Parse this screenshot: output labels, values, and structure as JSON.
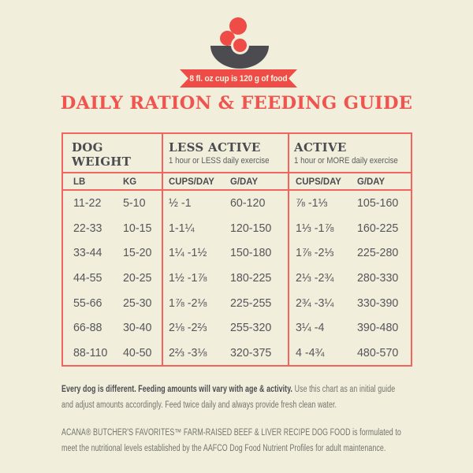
{
  "theme": {
    "background": "#f1eedc",
    "accent_red": "#ef4c47",
    "title_red": "#ef554e",
    "table_border_red": "#f2655e",
    "dark_gray": "#4b4b50",
    "value_gray": "#56565a",
    "note_gray": "#73736c",
    "ribbon_text_cream": "#f6f3e1"
  },
  "icons": {
    "bowl": "dog-food-bowl-icon",
    "kibble": "kibble-dot-icon"
  },
  "banner": {
    "text": "8 fl. oz cup is 120 g of food"
  },
  "title": "DAILY RATION & FEEDING GUIDE",
  "table": {
    "weight": {
      "title_line1": "DOG",
      "title_line2": "WEIGHT",
      "col1": "LB",
      "col2": "KG"
    },
    "less_active": {
      "title": "LESS ACTIVE",
      "subtitle": "1 hour or LESS daily exercise",
      "col1": "CUPS/DAY",
      "col2": "G/DAY"
    },
    "active": {
      "title": "ACTIVE",
      "subtitle": "1 hour or MORE daily exercise",
      "col1": "CUPS/DAY",
      "col2": "G/DAY"
    },
    "rows": [
      {
        "lb": "11-22",
        "kg": "5-10",
        "la_cups": "½ -1",
        "la_g": "60-120",
        "a_cups": "⅞ -1⅓",
        "a_g": "105-160"
      },
      {
        "lb": "22-33",
        "kg": "10-15",
        "la_cups": "1-1¼",
        "la_g": "120-150",
        "a_cups": "1⅓ -1⅞",
        "a_g": "160-225"
      },
      {
        "lb": "33-44",
        "kg": "15-20",
        "la_cups": "1¼ -1½",
        "la_g": "150-180",
        "a_cups": "1⅞ -2⅓",
        "a_g": "225-280"
      },
      {
        "lb": "44-55",
        "kg": "20-25",
        "la_cups": "1½ -1⅞",
        "la_g": "180-225",
        "a_cups": "2⅓ -2¾",
        "a_g": "280-330"
      },
      {
        "lb": "55-66",
        "kg": "25-30",
        "la_cups": "1⅞ -2⅛",
        "la_g": "225-255",
        "a_cups": "2¾ -3¼",
        "a_g": "330-390"
      },
      {
        "lb": "66-88",
        "kg": "30-40",
        "la_cups": "2⅛ -2⅔",
        "la_g": "255-320",
        "a_cups": "3¼ -4",
        "a_g": "390-480"
      },
      {
        "lb": "88-110",
        "kg": "40-50",
        "la_cups": "2⅔ -3⅛",
        "la_g": "320-375",
        "a_cups": "4 -4¾",
        "a_g": "480-570"
      }
    ]
  },
  "notes": {
    "disclaimer_bold": "Every dog is different. Feeding amounts will vary with age & activity.",
    "disclaimer_rest": " Use this chart as an initial guide and adjust amounts accordingly. Feed twice daily and always provide fresh clean water.",
    "aafco": "ACANA® BUTCHER'S FAVORITES™ FARM-RAISED BEEF & LIVER RECIPE DOG FOOD is formulated to meet the nutritional levels established by the AAFCO Dog Food Nutrient Profiles for adult maintenance."
  }
}
